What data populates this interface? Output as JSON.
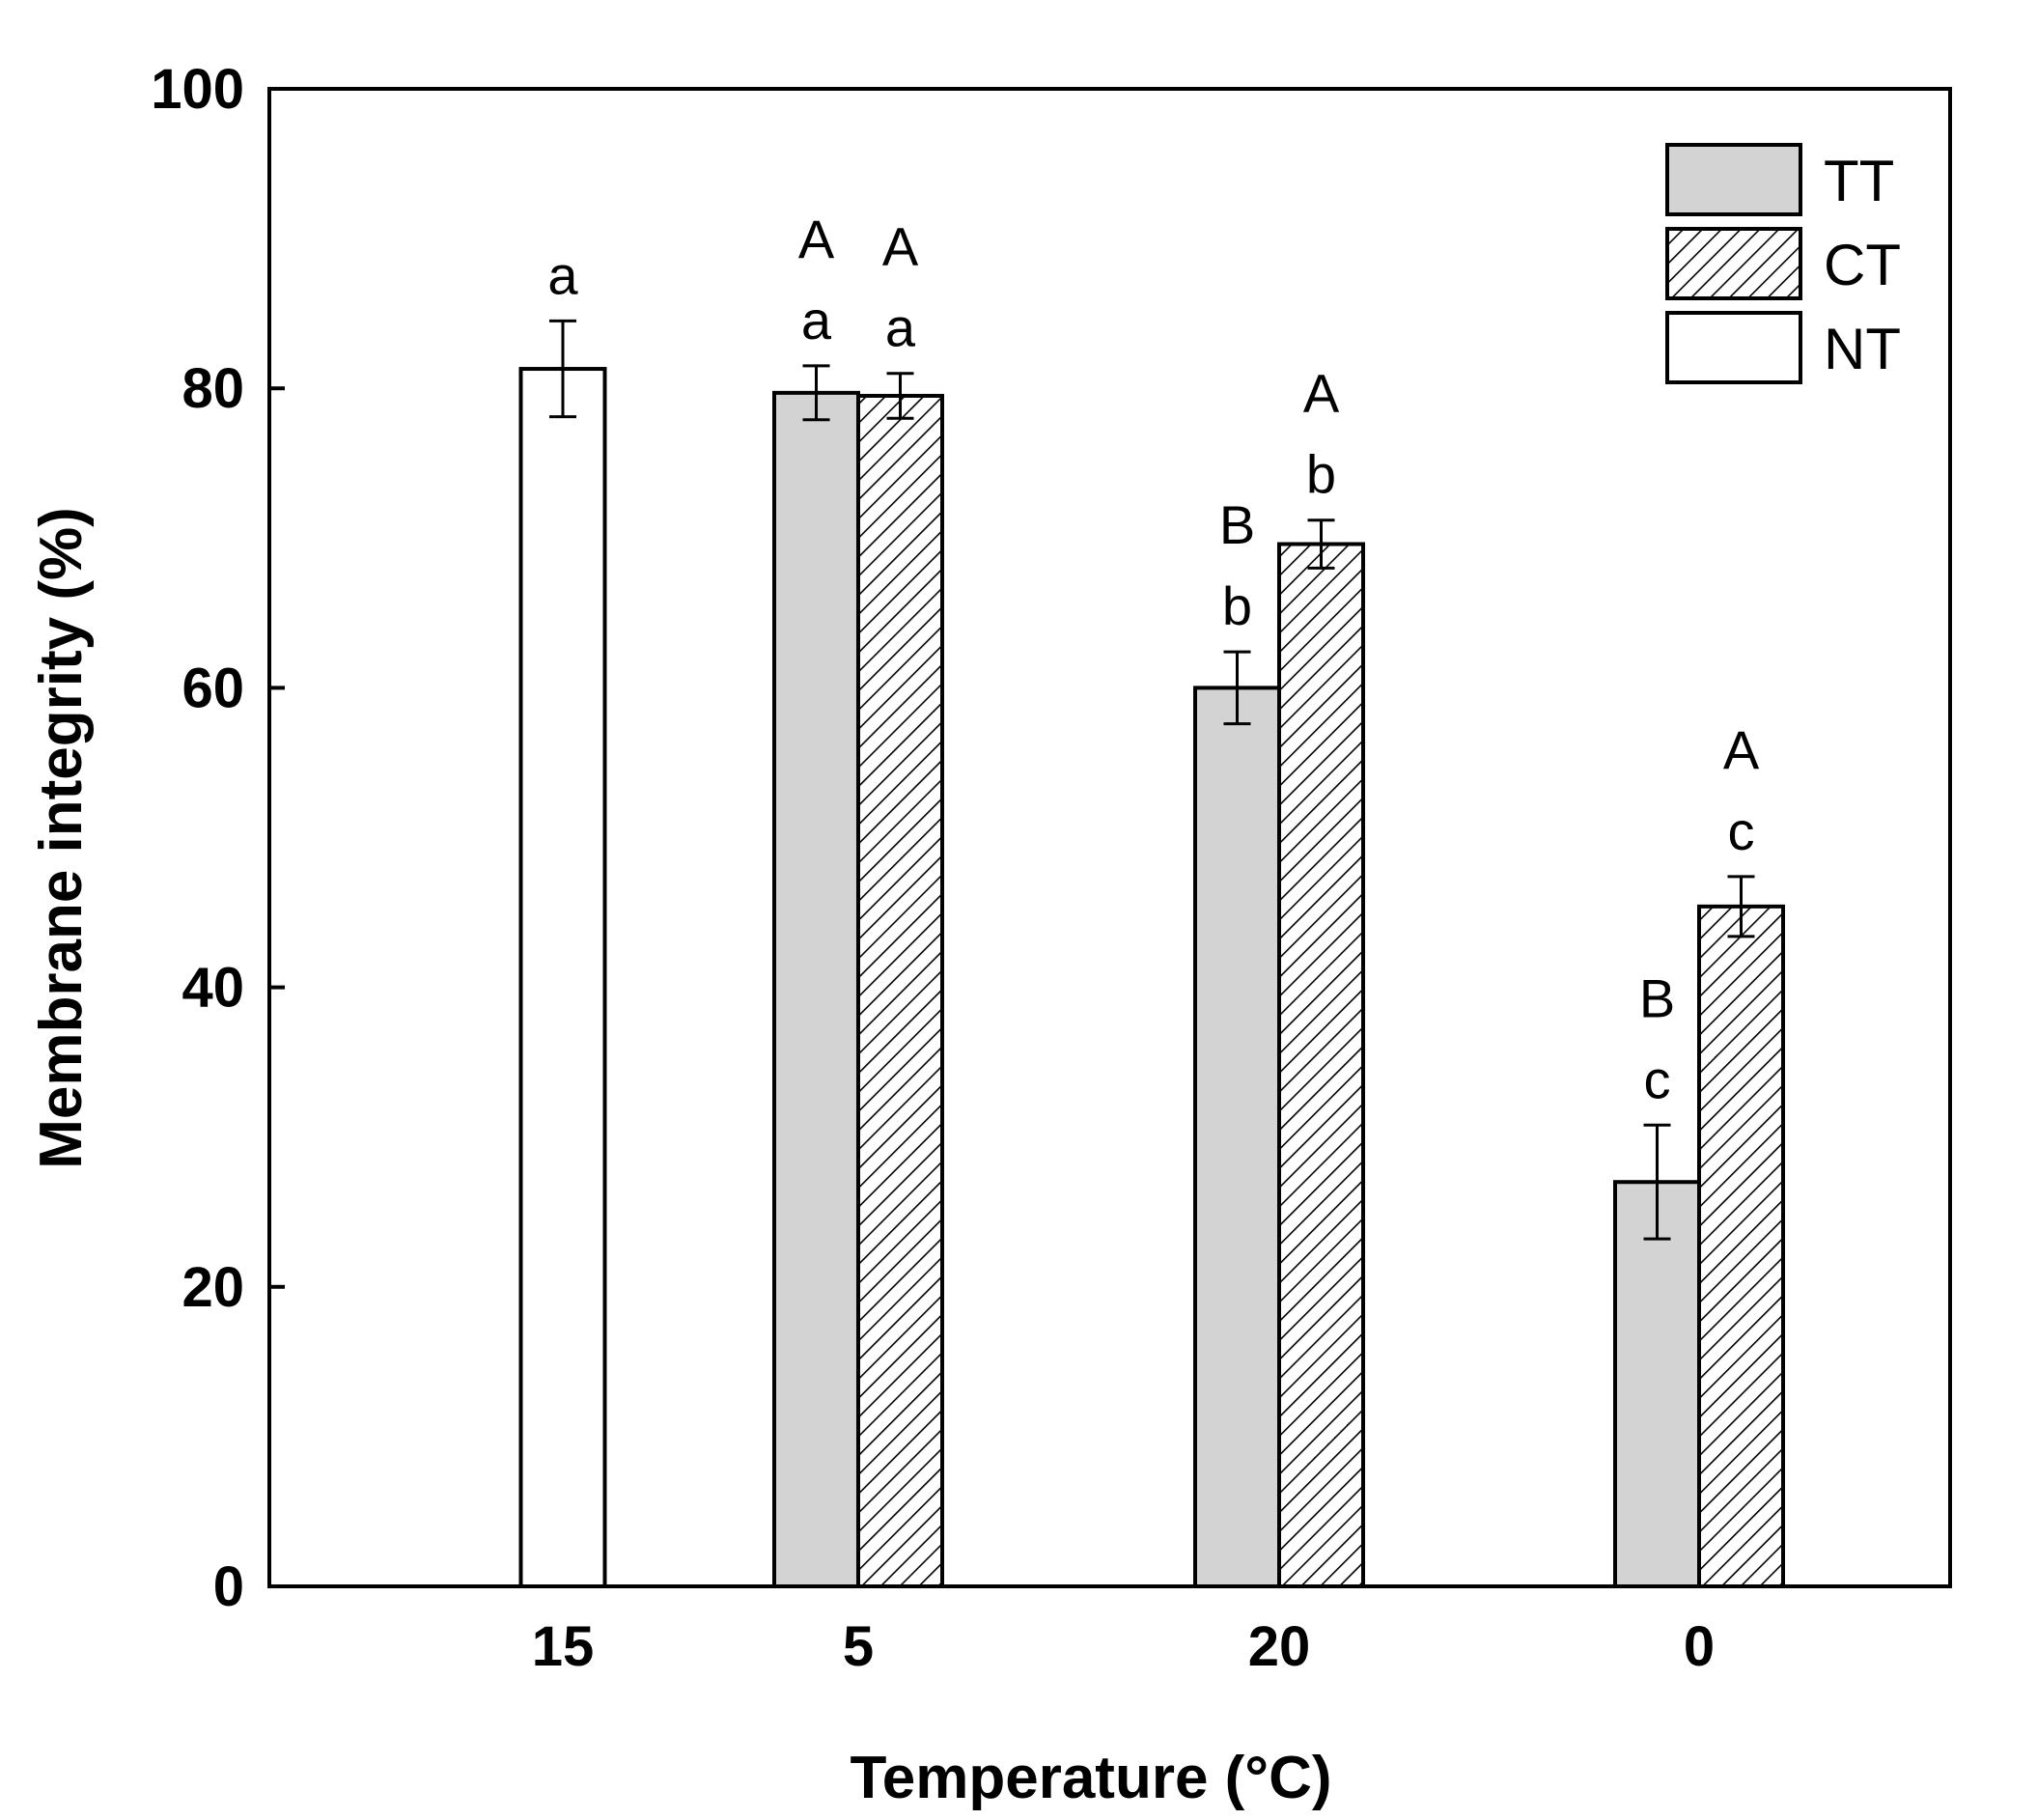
{
  "chart_data": {
    "type": "bar",
    "title": "",
    "xlabel": "Temperature (°C)",
    "ylabel": "Membrane integrity (%)",
    "ylim": [
      0,
      100
    ],
    "yticks": [
      0,
      20,
      40,
      60,
      80,
      100
    ],
    "categories": [
      "15",
      "5",
      "20",
      "0"
    ],
    "series": [
      {
        "name": "TT",
        "fill": "#d3d3d3",
        "pattern": "solid",
        "values": [
          null,
          79.7,
          60.0,
          27.0
        ],
        "errors": [
          null,
          1.8,
          2.4,
          3.8
        ],
        "letters_lower": [
          null,
          "a",
          "b",
          "c"
        ],
        "letters_upper": [
          null,
          "A",
          "B",
          "B"
        ]
      },
      {
        "name": "CT",
        "fill": "#ffffff",
        "pattern": "hatch",
        "values": [
          null,
          79.5,
          69.6,
          45.4
        ],
        "errors": [
          null,
          1.5,
          1.6,
          2.0
        ],
        "letters_lower": [
          null,
          "a",
          "b",
          "c"
        ],
        "letters_upper": [
          null,
          "A",
          "A",
          "A"
        ]
      },
      {
        "name": "NT",
        "fill": "#ffffff",
        "pattern": "solid",
        "values": [
          81.3,
          null,
          null,
          null
        ],
        "errors": [
          3.2,
          null,
          null,
          null
        ],
        "letters_lower": [
          "a",
          null,
          null,
          null
        ],
        "letters_upper": [
          null,
          null,
          null,
          null
        ]
      }
    ],
    "legend": {
      "position": "top-right",
      "entries": [
        "TT",
        "CT",
        "NT"
      ]
    },
    "grid": false
  }
}
